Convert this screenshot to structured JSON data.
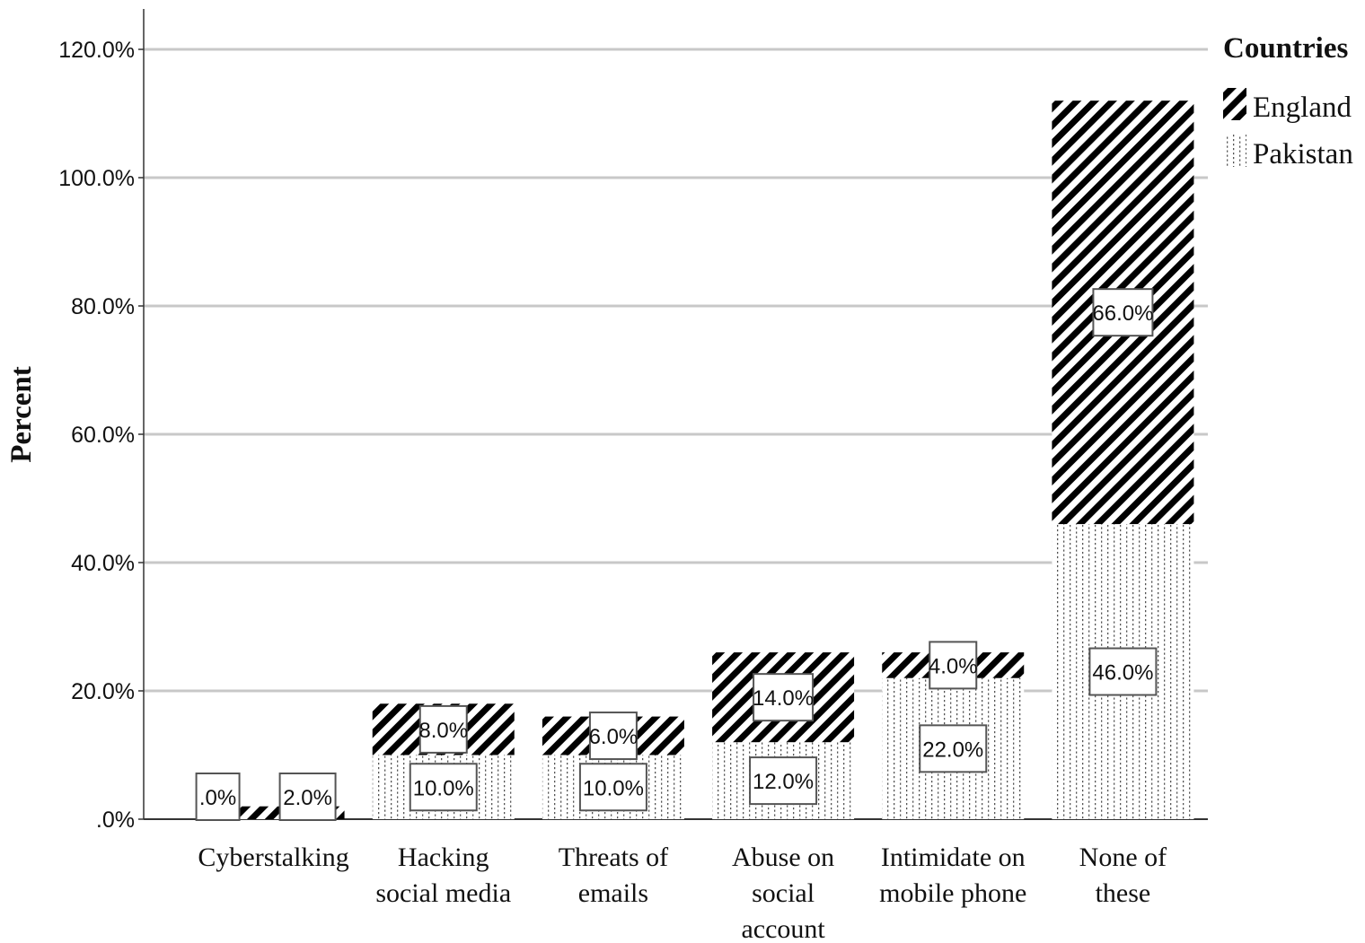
{
  "chart_data": {
    "type": "bar",
    "stacked": true,
    "categories": [
      [
        "Cyberstalking"
      ],
      [
        "Hacking",
        "social media"
      ],
      [
        "Threats of",
        "emails"
      ],
      [
        "Abuse on",
        "social",
        "account"
      ],
      [
        "Intimidate on",
        "mobile phone"
      ],
      [
        "None of",
        "these"
      ]
    ],
    "ylabel": "Percent",
    "ylim": [
      0,
      120
    ],
    "yticks": [
      ".0%",
      "20.0%",
      "40.0%",
      "60.0%",
      "80.0%",
      "100.0%",
      "120.0%"
    ],
    "grid": true,
    "legend": {
      "title": "Countries",
      "placement": "top-right",
      "entries": [
        {
          "name": "England",
          "pattern": "diagonal-hatch"
        },
        {
          "name": "Pakistan",
          "pattern": "dotted"
        }
      ]
    },
    "series": [
      {
        "name": "Pakistan",
        "values": [
          0,
          10,
          10,
          12,
          22,
          46
        ],
        "labels": [
          ".0%",
          "10.0%",
          "10.0%",
          "12.0%",
          "22.0%",
          "46.0%"
        ]
      },
      {
        "name": "England",
        "values": [
          2,
          8,
          6,
          14,
          4,
          66
        ],
        "labels": [
          "2.0%",
          "8.0%",
          "6.0%",
          "14.0%",
          "4.0%",
          "66.0%"
        ]
      }
    ]
  }
}
